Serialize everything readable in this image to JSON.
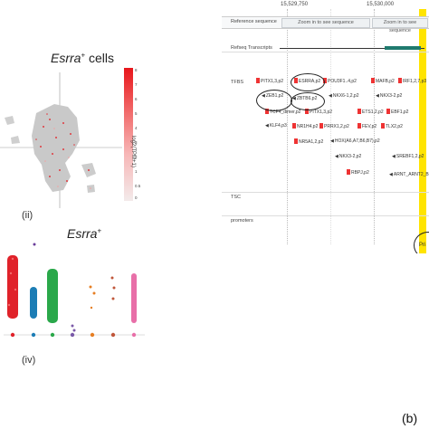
{
  "panel_cells_title_prefix": "Esrra",
  "panel_cells_title_sup": "+",
  "panel_cells_title_suffix": " cells",
  "panel_ii_label": "(ii)",
  "panel_esrra_title": "Esrra",
  "panel_esrra_sup": "+",
  "panel_iv_label": "(iv)",
  "panel_b_label": "(b)",
  "colorbar_label": "log2(TPM+1)",
  "colorbar_ticks": [
    "8",
    "7",
    "6",
    "5",
    "4",
    "3",
    "2",
    "1",
    "0.5",
    "0"
  ],
  "browser": {
    "coord_left": "15,529,750",
    "coord_right": "15,530,000",
    "ref_seq_label": "Reference sequence",
    "zoom_buttons": [
      "Zoom in to see sequence",
      "Zoom in to see sequence"
    ],
    "refseq_label": "Refseq Transcripts",
    "tfbs_label": "TFBS",
    "tsc_label": "TSC",
    "promoters_label": "promoters",
    "promoter_partial": "Pri"
  },
  "tfbs_sites": [
    "PITX1,3,p2",
    "ESRRA,p2",
    "POU3F1..4,p2",
    "MAFB,p2",
    "IRF1,2,7,p3",
    "ZEB1,p2",
    "ZBTB6,p2",
    "NKX6-1,2,p2",
    "NKX3-2,p2",
    "TCF4_dimer,p2",
    "PITX1,3,p2",
    "ETS1,2,p2",
    "EBF1,p2",
    "KLF4,p3",
    "NR1H4,p2",
    "PRRX1,2,p2",
    "FEV,p2",
    "TLX2,p2",
    "NR5A1,2,p2",
    "HOX(A6,A7,B6,B7),p2",
    "NKX3-2,p2",
    "SREBF1,2,p2",
    "RBPJ,p2",
    "ARNT_ARNT2_B"
  ],
  "colors": {
    "highlight": "#ffe400",
    "refseq_bar": "#1f7a6e",
    "tfbs_mark": "#e33333"
  }
}
